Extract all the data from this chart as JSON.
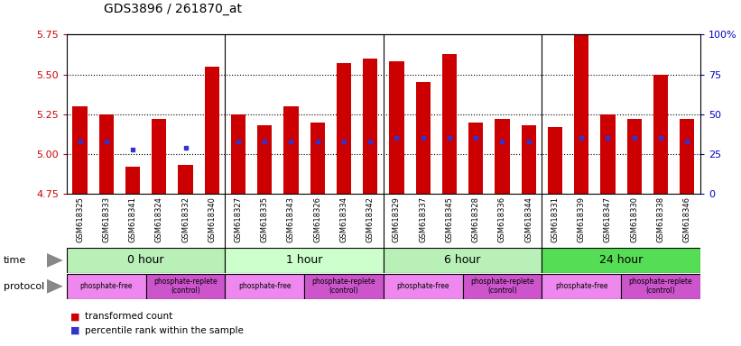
{
  "title": "GDS3896 / 261870_at",
  "samples": [
    "GSM618325",
    "GSM618333",
    "GSM618341",
    "GSM618324",
    "GSM618332",
    "GSM618340",
    "GSM618327",
    "GSM618335",
    "GSM618343",
    "GSM618326",
    "GSM618334",
    "GSM618342",
    "GSM618329",
    "GSM618337",
    "GSM618345",
    "GSM618328",
    "GSM618336",
    "GSM618344",
    "GSM618331",
    "GSM618339",
    "GSM618347",
    "GSM618330",
    "GSM618338",
    "GSM618346"
  ],
  "bar_values": [
    5.3,
    5.25,
    4.92,
    5.22,
    4.93,
    5.55,
    5.25,
    5.18,
    5.3,
    5.2,
    5.57,
    5.6,
    5.58,
    5.45,
    5.63,
    5.2,
    5.22,
    5.18,
    5.17,
    5.88,
    5.25,
    5.22,
    5.5,
    5.22
  ],
  "blue_dot_values": [
    5.08,
    5.08,
    5.03,
    null,
    5.04,
    null,
    5.08,
    5.08,
    5.08,
    5.08,
    5.08,
    5.08,
    5.1,
    5.1,
    5.1,
    5.1,
    5.08,
    5.08,
    null,
    5.1,
    5.1,
    5.1,
    5.1,
    5.08
  ],
  "bar_bottom": 4.75,
  "ylim": [
    4.75,
    5.75
  ],
  "yticks_left": [
    4.75,
    5.0,
    5.25,
    5.5,
    5.75
  ],
  "yticks_right_vals": [
    0,
    25,
    50,
    75,
    100
  ],
  "yticks_right_labels": [
    "0",
    "25",
    "50",
    "75",
    "100%"
  ],
  "bar_color": "#cc0000",
  "dot_color": "#3333cc",
  "time_groups": [
    {
      "label": "0 hour",
      "start": 0,
      "end": 6,
      "color": "#b8f0b8"
    },
    {
      "label": "1 hour",
      "start": 6,
      "end": 12,
      "color": "#ccffcc"
    },
    {
      "label": "6 hour",
      "start": 12,
      "end": 18,
      "color": "#b8f0b8"
    },
    {
      "label": "24 hour",
      "start": 18,
      "end": 24,
      "color": "#55dd55"
    }
  ],
  "protocol_groups": [
    {
      "label": "phosphate-free",
      "start": 0,
      "end": 3,
      "color": "#ee88ee"
    },
    {
      "label": "phosphate-replete\n(control)",
      "start": 3,
      "end": 6,
      "color": "#cc55cc"
    },
    {
      "label": "phosphate-free",
      "start": 6,
      "end": 9,
      "color": "#ee88ee"
    },
    {
      "label": "phosphate-replete\n(control)",
      "start": 9,
      "end": 12,
      "color": "#cc55cc"
    },
    {
      "label": "phosphate-free",
      "start": 12,
      "end": 15,
      "color": "#ee88ee"
    },
    {
      "label": "phosphate-replete\n(control)",
      "start": 15,
      "end": 18,
      "color": "#cc55cc"
    },
    {
      "label": "phosphate-free",
      "start": 18,
      "end": 21,
      "color": "#ee88ee"
    },
    {
      "label": "phosphate-replete\n(control)",
      "start": 21,
      "end": 24,
      "color": "#cc55cc"
    }
  ],
  "grid_values": [
    5.0,
    5.25,
    5.5
  ],
  "title_color": "#000000",
  "left_axis_color": "#cc0000",
  "right_axis_color": "#0000cc",
  "time_label": "time",
  "protocol_label": "protocol",
  "legend_red": "transformed count",
  "legend_blue": "percentile rank within the sample",
  "xtick_bg_color": "#d8d8d8"
}
